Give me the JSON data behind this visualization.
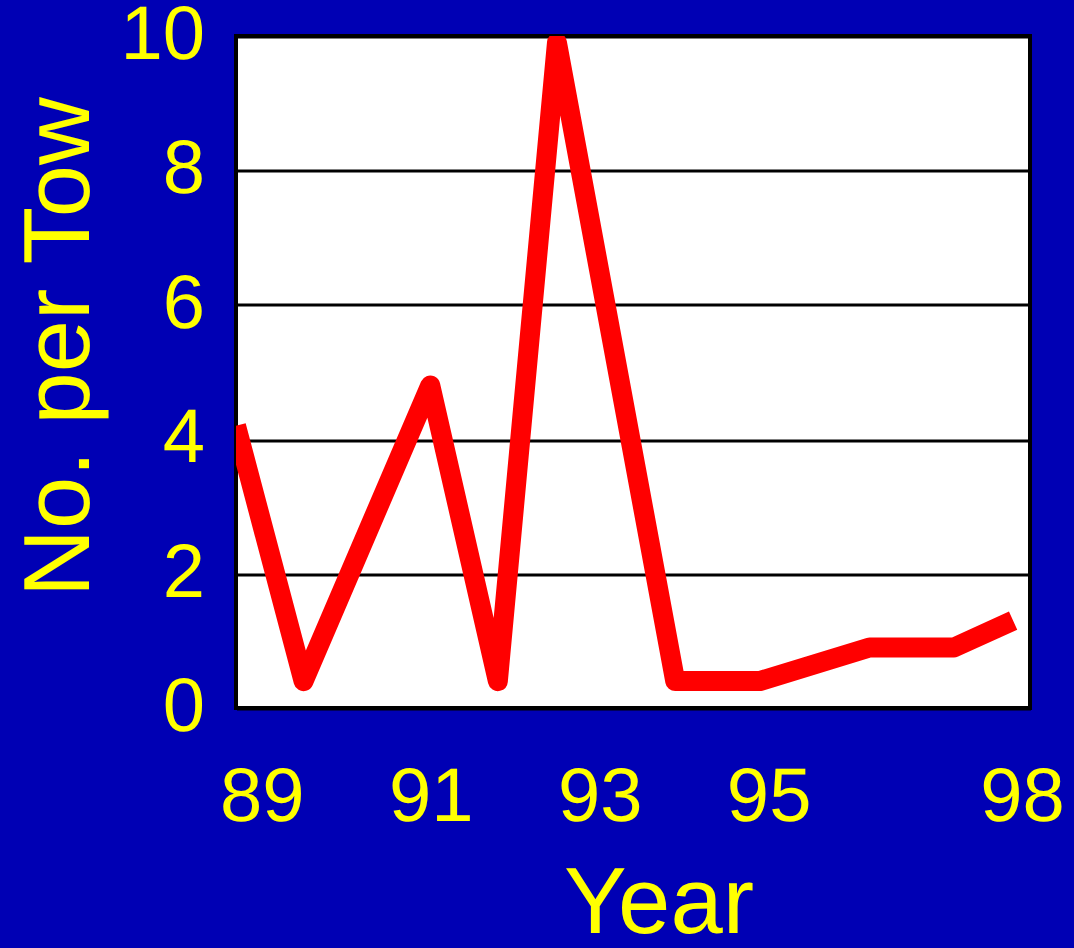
{
  "chart_data": {
    "type": "line",
    "xlabel": "Year",
    "ylabel": "No. per Tow",
    "x": [
      88.7,
      89.5,
      91.0,
      91.8,
      92.5,
      93.9,
      94.9,
      96.2,
      97.2,
      97.9
    ],
    "series": [
      {
        "color": "#ff0000",
        "values": [
          4.2,
          0.4,
          4.8,
          0.4,
          9.9,
          0.4,
          0.4,
          0.9,
          0.9,
          1.3
        ]
      }
    ],
    "xlim": [
      88.7,
      98.1
    ],
    "xticks": [
      89,
      91,
      93,
      95,
      98
    ],
    "ylim": [
      0,
      10
    ],
    "yticks": [
      0,
      2,
      4,
      6,
      8,
      10
    ],
    "grid": "y",
    "marker": "none",
    "line_style": "solid"
  }
}
